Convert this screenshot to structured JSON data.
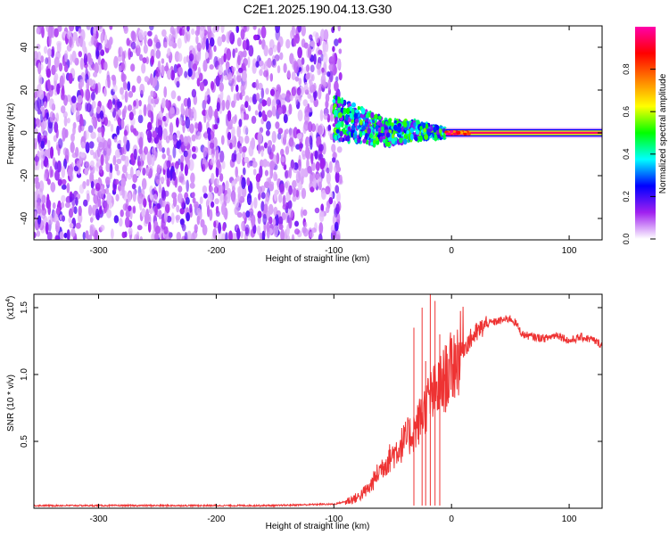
{
  "title": "C2E1.2025.190.04.13.G30",
  "chart_data": [
    {
      "type": "heatmap",
      "xlabel": "Height of straight line (km)",
      "ylabel": "Frequency (Hz)",
      "xlim": [
        -355,
        128
      ],
      "ylim": [
        -50,
        50
      ],
      "x_ticks": [
        {
          "value": -300,
          "label": "-300"
        },
        {
          "value": -200,
          "label": "-200"
        },
        {
          "value": -100,
          "label": "-100"
        },
        {
          "value": 0,
          "label": "0"
        },
        {
          "value": 100,
          "label": "100"
        }
      ],
      "y_ticks": [
        {
          "value": -40,
          "label": "-40"
        },
        {
          "value": -20,
          "label": "-20"
        },
        {
          "value": 0,
          "label": "0"
        },
        {
          "value": 20,
          "label": "20"
        },
        {
          "value": 40,
          "label": "40"
        }
      ],
      "colorbar": {
        "label": "Normalized spectral amplitude",
        "range": [
          0,
          1
        ],
        "ticks": [
          {
            "value": 0.0,
            "label": "0.0"
          },
          {
            "value": 0.2,
            "label": "0.2"
          },
          {
            "value": 0.4,
            "label": "0.4"
          },
          {
            "value": 0.6,
            "label": "0.6"
          },
          {
            "value": 0.8,
            "label": "0.8"
          }
        ],
        "colors": [
          "#ffffff",
          "#a020f0",
          "#0000ff",
          "#00ffff",
          "#00ff00",
          "#ffff00",
          "#ff8000",
          "#ff0000",
          "#ff00aa"
        ]
      },
      "features": [
        {
          "x_range": [
            -355,
            -100
          ],
          "y_range": [
            -50,
            50
          ],
          "amplitude": 0.08
        },
        {
          "x_range": [
            -100,
            -5
          ],
          "center_frequency": [
            [
              -100,
              7
            ],
            [
              -80,
              4
            ],
            [
              -55,
              0
            ],
            [
              -30,
              1
            ],
            [
              -5,
              0
            ]
          ],
          "amplitude": 0.4
        },
        {
          "x_range": [
            -5,
            128
          ],
          "center_frequency": 0,
          "amplitude": 0.95
        }
      ],
      "grid": false
    },
    {
      "type": "line",
      "xlabel": "Height of straight line (km)",
      "ylabel": "SNR (10 * v/v)",
      "scale_label": "(x10",
      "scale_exponent": "4",
      "xlim": [
        -355,
        128
      ],
      "ylim": [
        0,
        1.6
      ],
      "x_ticks": [
        {
          "value": -300,
          "label": "-300"
        },
        {
          "value": -200,
          "label": "-200"
        },
        {
          "value": -100,
          "label": "-100"
        },
        {
          "value": 0,
          "label": "0"
        },
        {
          "value": 100,
          "label": "100"
        }
      ],
      "y_ticks": [
        {
          "value": 0.5,
          "label": "0.5"
        },
        {
          "value": 1.0,
          "label": "1.0"
        },
        {
          "value": 1.5,
          "label": "1.5"
        }
      ],
      "series": [
        {
          "color": "#ee3333",
          "x": [
            -355,
            -300,
            -250,
            -200,
            -150,
            -110,
            -100,
            -90,
            -80,
            -70,
            -60,
            -50,
            -40,
            -30,
            -20,
            -10,
            0,
            10,
            20,
            30,
            40,
            50,
            55,
            60,
            70,
            80,
            90,
            100,
            110,
            120,
            128
          ],
          "y": [
            0.02,
            0.02,
            0.02,
            0.02,
            0.02,
            0.03,
            0.03,
            0.05,
            0.08,
            0.15,
            0.3,
            0.4,
            0.5,
            0.6,
            0.8,
            0.9,
            1.05,
            1.2,
            1.3,
            1.38,
            1.4,
            1.42,
            1.38,
            1.3,
            1.28,
            1.27,
            1.3,
            1.25,
            1.28,
            1.26,
            1.22
          ]
        }
      ],
      "spikes": [
        {
          "x": -32,
          "y": 1.35
        },
        {
          "x": -25,
          "y": 1.5
        },
        {
          "x": -22,
          "y": 1.1
        },
        {
          "x": -18,
          "y": 1.6
        },
        {
          "x": -14,
          "y": 1.55
        },
        {
          "x": -10,
          "y": 1.3
        }
      ],
      "grid": false
    }
  ]
}
